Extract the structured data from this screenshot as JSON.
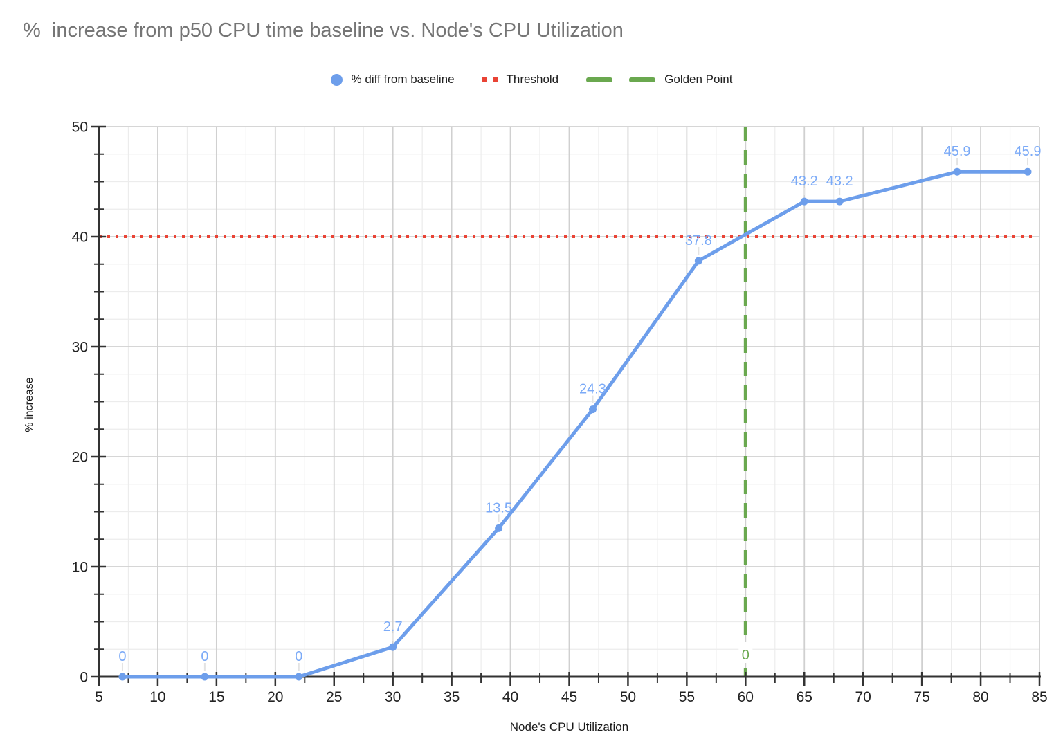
{
  "chart": {
    "title": "%  increase from p50 CPU time baseline vs. Node's CPU Utilization"
  },
  "legend": [
    {
      "label": "% diff from baseline",
      "marker": "circle",
      "color": "#6d9eeb"
    },
    {
      "label": "Threshold",
      "marker": "dotted-line",
      "color": "#e94335"
    },
    {
      "label": "Golden Point",
      "marker": "dashed-line",
      "color": "#6aa84f"
    }
  ],
  "chart_data": {
    "type": "line",
    "title": "%  increase from p50 CPU time baseline vs. Node's CPU Utilization",
    "xlabel": "Node's CPU Utilization",
    "ylabel": "% increase",
    "xlim": [
      5,
      85
    ],
    "ylim": [
      0,
      50
    ],
    "x_ticks": [
      5,
      10,
      15,
      20,
      25,
      30,
      35,
      40,
      45,
      50,
      55,
      60,
      65,
      70,
      75,
      80,
      85
    ],
    "y_ticks": [
      0,
      10,
      20,
      30,
      40,
      50
    ],
    "x_minor_step": 2.5,
    "y_minor_step": 2.5,
    "grid": true,
    "legend_position": "top",
    "series": [
      {
        "name": "% diff from baseline",
        "kind": "line-with-markers",
        "color": "#6d9eeb",
        "label_color": "#7baaf7",
        "x": [
          7,
          14,
          22,
          30,
          39,
          47,
          56,
          65,
          68,
          78,
          84
        ],
        "y": [
          0,
          0,
          0,
          2.7,
          13.5,
          24.3,
          37.8,
          43.2,
          43.2,
          45.9,
          45.9
        ],
        "point_labels": [
          "0",
          "0",
          "0",
          "2.7",
          "13.5",
          "24.3",
          "37.8",
          "43.2",
          "43.2",
          "45.9",
          "45.9"
        ]
      },
      {
        "name": "Threshold",
        "kind": "horizontal-line",
        "style": "dotted",
        "color": "#e94335",
        "y": 40
      },
      {
        "name": "Golden Point",
        "kind": "vertical-line",
        "style": "dashed",
        "color": "#6aa84f",
        "x": 60,
        "label": "0"
      }
    ]
  }
}
